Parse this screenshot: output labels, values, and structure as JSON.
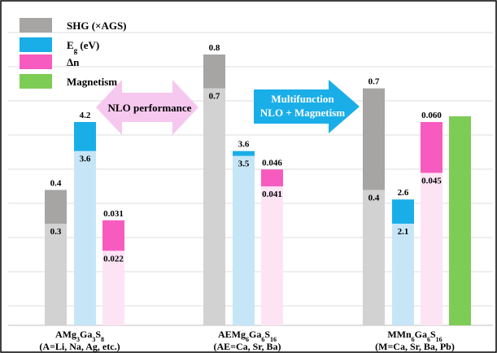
{
  "chart_data": {
    "type": "bar",
    "legend": [
      {
        "name": "SHG (×AGS)",
        "main": "SHG (×AGS)",
        "sub": "",
        "rest": "",
        "color": "#a7a4a4"
      },
      {
        "name": "Eg (eV)",
        "main": "E",
        "sub": "g",
        "rest": " (eV)",
        "color": "#1aaee8"
      },
      {
        "name": "Δn",
        "main": "Δn",
        "sub": "",
        "rest": "",
        "color": "#f75bbf"
      },
      {
        "name": "Magnetism",
        "main": "Magnetism",
        "sub": "",
        "rest": "",
        "color": "#7dcc55"
      }
    ],
    "legend_position": "top-left",
    "groups": [
      {
        "formula": [
          {
            "t": "AMg",
            "s": false
          },
          {
            "t": "3",
            "s": true
          },
          {
            "t": "Ga",
            "s": false
          },
          {
            "t": "3",
            "s": true
          },
          {
            "t": "S",
            "s": false
          },
          {
            "t": "8",
            "s": true
          }
        ],
        "sub": "(A=Li,  Na,  Ag, etc.)",
        "shg": {
          "low": 0.3,
          "high": 0.4,
          "low_label": "0.3",
          "high_label": "0.4"
        },
        "eg": {
          "low": 3.6,
          "high": 4.2,
          "low_label": "3.6",
          "high_label": "4.2"
        },
        "dn": {
          "low": 0.022,
          "high": 0.031,
          "low_label": "0.022",
          "high_label": "0.031"
        },
        "magnetism": false
      },
      {
        "formula": [
          {
            "t": "AEMg",
            "s": false
          },
          {
            "t": "6",
            "s": true
          },
          {
            "t": "Ga",
            "s": false
          },
          {
            "t": "6",
            "s": true
          },
          {
            "t": "S",
            "s": false
          },
          {
            "t": "16",
            "s": true
          }
        ],
        "sub": "(AE=Ca,  Sr,  Ba)",
        "shg": {
          "low": 0.7,
          "high": 0.8,
          "low_label": "0.7",
          "high_label": "0.8"
        },
        "eg": {
          "low": 3.5,
          "high": 3.6,
          "low_label": "3.5",
          "high_label": "3.6"
        },
        "dn": {
          "low": 0.041,
          "high": 0.046,
          "low_label": "0.041",
          "high_label": "0.046"
        },
        "magnetism": false
      },
      {
        "formula": [
          {
            "t": "MMn",
            "s": false
          },
          {
            "t": "6",
            "s": true
          },
          {
            "t": "Ga",
            "s": false
          },
          {
            "t": "6",
            "s": true
          },
          {
            "t": "S",
            "s": false
          },
          {
            "t": "16",
            "s": true
          }
        ],
        "sub": "(M=Ca,  Sr,  Ba, Pb)",
        "shg": {
          "low": 0.4,
          "high": 0.7,
          "low_label": "0.4",
          "high_label": "0.7"
        },
        "eg": {
          "low": 2.1,
          "high": 2.6,
          "low_label": "2.1",
          "high_label": "2.6"
        },
        "dn": {
          "low": 0.045,
          "high": 0.06,
          "low_label": "0.045",
          "high_label": "0.060"
        },
        "magnetism": true
      }
    ],
    "annotations": [
      {
        "text": "NLO performance",
        "style": "double-arrow",
        "color": "#f6c8ef"
      },
      {
        "text": "Multifunction\nNLO + Magnetism",
        "style": "right-arrow",
        "color": "#1aaee8"
      }
    ],
    "grid": true,
    "title": "",
    "xlabel": "",
    "ylabel": ""
  },
  "colors": {
    "shg_fill": "#a7a4a4",
    "shg_light": "#d3d2d2",
    "eg_fill": "#1aaee8",
    "eg_light": "#c6e6f8",
    "dn_fill": "#f75bbf",
    "dn_light": "#fde4f5",
    "mag_fill": "#7dcc55",
    "grid": "#dcdcdc",
    "frame": "#000000"
  }
}
